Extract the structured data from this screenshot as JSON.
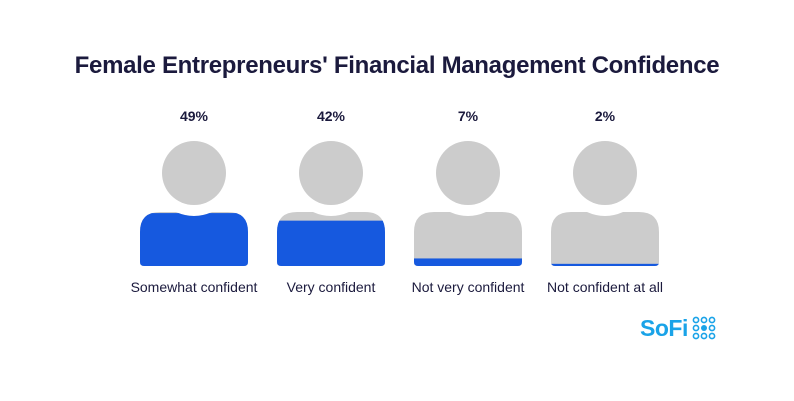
{
  "chart_data": {
    "type": "pictograph",
    "title": "Female Entrepreneurs' Financial Management Confidence",
    "categories": [
      "Somewhat confident",
      "Very confident",
      "Not very confident",
      "Not confident at all"
    ],
    "values": [
      49,
      42,
      7,
      2
    ],
    "value_labels": [
      "49%",
      "42%",
      "7%",
      "2%"
    ],
    "unit": "%",
    "fill_color": "#1659df",
    "empty_color": "#cccccc"
  },
  "brand": {
    "name": "SoFi",
    "color": "#1aa3e8"
  }
}
